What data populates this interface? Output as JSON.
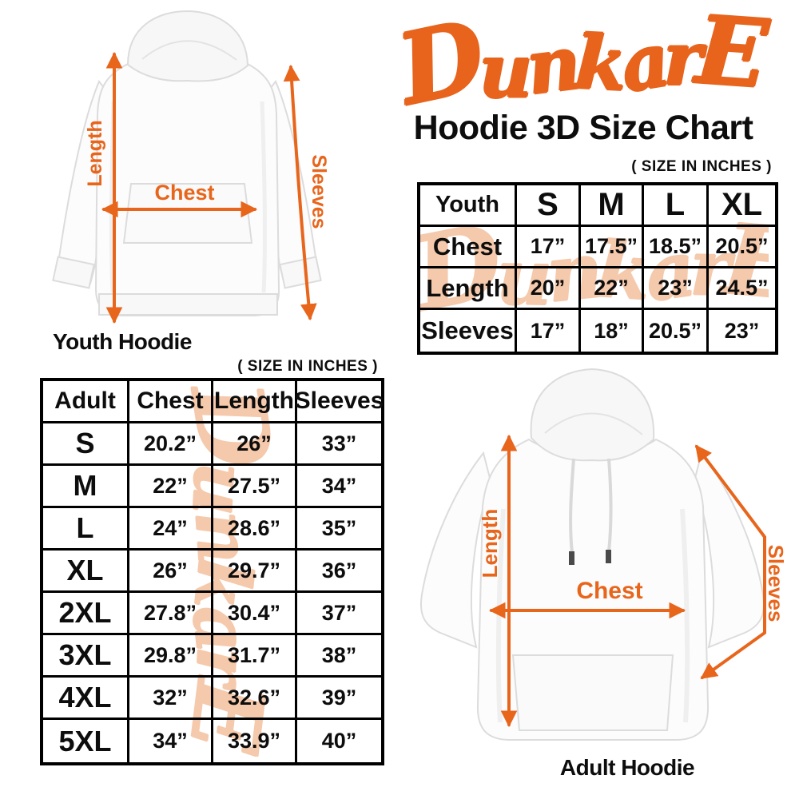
{
  "colors": {
    "accent_orange": "#E8641C",
    "watermark_peach": "#F5C9AB",
    "text": "#0d0d0d"
  },
  "header": {
    "brand": "DunkarE",
    "title": "Hoodie 3D Size Chart"
  },
  "watermark": {
    "text": "DunkarE"
  },
  "youth_section": {
    "size_note": "( SIZE IN INCHES )",
    "diagram": {
      "caption": "Youth Hoodie",
      "labels": {
        "length": "Length",
        "chest": "Chest",
        "sleeves": "Sleeves"
      }
    },
    "table": {
      "header": [
        "Youth",
        "S",
        "M",
        "L",
        "XL"
      ],
      "rows": [
        {
          "label": "Chest",
          "values": [
            "17”",
            "17.5”",
            "18.5”",
            "20.5”"
          ]
        },
        {
          "label": "Length",
          "values": [
            "20”",
            "22”",
            "23”",
            "24.5”"
          ]
        },
        {
          "label": "Sleeves",
          "values": [
            "17”",
            "18”",
            "20.5”",
            "23”"
          ]
        }
      ]
    }
  },
  "adult_section": {
    "size_note": "( SIZE IN INCHES )",
    "diagram": {
      "caption": "Adult Hoodie",
      "labels": {
        "length": "Length",
        "chest": "Chest",
        "sleeves": "Sleeves"
      }
    },
    "table": {
      "header": [
        "Adult",
        "Chest",
        "Length",
        "Sleeves"
      ],
      "rows": [
        {
          "label": "S",
          "values": [
            "20.2”",
            "26”",
            "33”"
          ]
        },
        {
          "label": "M",
          "values": [
            "22”",
            "27.5”",
            "34”"
          ]
        },
        {
          "label": "L",
          "values": [
            "24”",
            "28.6”",
            "35”"
          ]
        },
        {
          "label": "XL",
          "values": [
            "26”",
            "29.7”",
            "36”"
          ]
        },
        {
          "label": "2XL",
          "values": [
            "27.8”",
            "30.4”",
            "37”"
          ]
        },
        {
          "label": "3XL",
          "values": [
            "29.8”",
            "31.7”",
            "38”"
          ]
        },
        {
          "label": "4XL",
          "values": [
            "32”",
            "32.6”",
            "39”"
          ]
        },
        {
          "label": "5XL",
          "values": [
            "34”",
            "33.9”",
            "40”"
          ]
        }
      ]
    }
  }
}
